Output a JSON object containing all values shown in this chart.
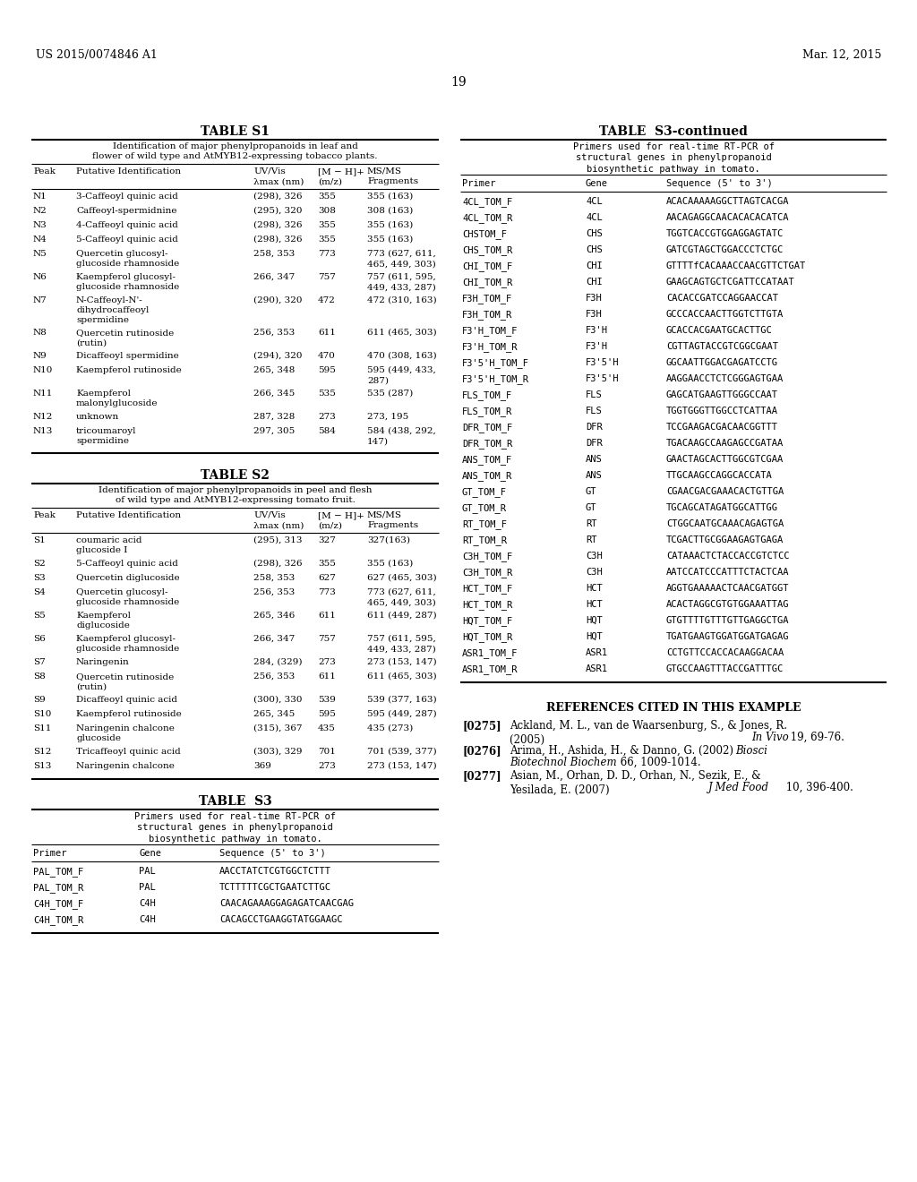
{
  "header_left": "US 2015/0074846 A1",
  "header_right": "Mar. 12, 2015",
  "page_number": "19",
  "bg_color": "#ffffff",
  "table_s1_title": "TABLE S1",
  "table_s1_subtitle": "Identification of major phenylpropanoids in leaf and\nflower of wild type and AtMYB12-expressing tobacco plants.",
  "table_s1_rows": [
    [
      "N1",
      "3-Caffeoyl quinic acid",
      "(298), 326",
      "355",
      "355 (163)"
    ],
    [
      "N2",
      "Caffeoyl-spermidnine",
      "(295), 320",
      "308",
      "308 (163)"
    ],
    [
      "N3",
      "4-Caffeoyl quinic acid",
      "(298), 326",
      "355",
      "355 (163)"
    ],
    [
      "N4",
      "5-Caffeoyl quinic acid",
      "(298), 326",
      "355",
      "355 (163)"
    ],
    [
      "N5",
      "Quercetin glucosyl-\nglucoside rhamnoside",
      "258, 353",
      "773",
      "773 (627, 611,\n465, 449, 303)"
    ],
    [
      "N6",
      "Kaempferol glucosyl-\nglucoside rhamnoside",
      "266, 347",
      "757",
      "757 (611, 595,\n449, 433, 287)"
    ],
    [
      "N7",
      "N-Caffeoyl-N'-\ndihydrocaffeoyl\nspermidine",
      "(290), 320",
      "472",
      "472 (310, 163)"
    ],
    [
      "N8",
      "Quercetin rutinoside\n(rutin)",
      "256, 353",
      "611",
      "611 (465, 303)"
    ],
    [
      "N9",
      "Dicaffeoyl spermidine",
      "(294), 320",
      "470",
      "470 (308, 163)"
    ],
    [
      "N10",
      "Kaempferol rutinoside",
      "265, 348",
      "595",
      "595 (449, 433,\n287)"
    ],
    [
      "N11",
      "Kaempferol\nmalonylglucoside",
      "266, 345",
      "535",
      "535 (287)"
    ],
    [
      "N12",
      "unknown",
      "287, 328",
      "273",
      "273, 195"
    ],
    [
      "N13",
      "tricoumaroyl\nspermidine",
      "297, 305",
      "584",
      "584 (438, 292,\n147)"
    ]
  ],
  "table_s2_title": "TABLE S2",
  "table_s2_subtitle": "Identification of major phenylpropanoids in peel and flesh\nof wild type and AtMYB12-expressing tomato fruit.",
  "table_s2_rows": [
    [
      "S1",
      "coumaric acid\nglucoside I",
      "(295), 313",
      "327",
      "327(163)"
    ],
    [
      "S2",
      "5-Caffeoyl quinic acid",
      "(298), 326",
      "355",
      "355 (163)"
    ],
    [
      "S3",
      "Quercetin diglucoside",
      "258, 353",
      "627",
      "627 (465, 303)"
    ],
    [
      "S4",
      "Quercetin glucosyl-\nglucoside rhamnoside",
      "256, 353",
      "773",
      "773 (627, 611,\n465, 449, 303)"
    ],
    [
      "S5",
      "Kaempferol\ndiglucoside",
      "265, 346",
      "611",
      "611 (449, 287)"
    ],
    [
      "S6",
      "Kaempferol glucosyl-\nglucoside rhamnoside",
      "266, 347",
      "757",
      "757 (611, 595,\n449, 433, 287)"
    ],
    [
      "S7",
      "Naringenin",
      "284, (329)",
      "273",
      "273 (153, 147)"
    ],
    [
      "S8",
      "Quercetin rutinoside\n(rutin)",
      "256, 353",
      "611",
      "611 (465, 303)"
    ],
    [
      "S9",
      "Dicaffeoyl quinic acid",
      "(300), 330",
      "539",
      "539 (377, 163)"
    ],
    [
      "S10",
      "Kaempferol rutinoside",
      "265, 345",
      "595",
      "595 (449, 287)"
    ],
    [
      "S11",
      "Naringenin chalcone\nglucoside",
      "(315), 367",
      "435",
      "435 (273)"
    ],
    [
      "S12",
      "Tricaffeoyl quinic acid",
      "(303), 329",
      "701",
      "701 (539, 377)"
    ],
    [
      "S13",
      "Naringenin chalcone",
      "369",
      "273",
      "273 (153, 147)"
    ]
  ],
  "table_s3_title": "TABLE  S3",
  "table_s3_subtitle": "Primers used for real-time RT-PCR of\nstructural genes in phenylpropanoid\nbiosynthetic pathway in tomato.",
  "table_s3_rows": [
    [
      "PAL_TOM_F",
      "PAL",
      "AACCTATCTCGTGGCTCTTT"
    ],
    [
      "PAL_TOM_R",
      "PAL",
      "TCTTTTTCGCTGAATCTTGC"
    ],
    [
      "C4H_TOM_F",
      "C4H",
      "CAACAGAAAGGAGAGATCAACGAG"
    ],
    [
      "C4H_TOM_R",
      "C4H",
      "CACAGCCTGAAGGTATGGAAGC"
    ]
  ],
  "table_s3cont_title": "TABLE  S3-continued",
  "table_s3cont_subtitle": "Primers used for real-time RT-PCR of\nstructural genes in phenylpropanoid\nbiosynthetic pathway in tomato.",
  "table_s3cont_rows": [
    [
      "4CL_TOM_F",
      "4CL",
      "ACACAAAAAGGCTTAGTCACGA"
    ],
    [
      "4CL_TOM_R",
      "4CL",
      "AACAGAGGCAACACACACATCA"
    ],
    [
      "CHSTOM_F",
      "CHS",
      "TGGTCACCGTGGAGGAGTATC"
    ],
    [
      "CHS_TOM_R",
      "CHS",
      "GATCGTAGCTGGACCCTCTGC"
    ],
    [
      "CHI_TOM_F",
      "CHI",
      "GTTTTfCACAAACCAACGTTCTGAT"
    ],
    [
      "CHI_TOM_R",
      "CHI",
      "GAAGCAGTGCTCGATTCCATAAT"
    ],
    [
      "F3H_TOM_F",
      "F3H",
      "CACACCGATCCAGGAACCAT"
    ],
    [
      "F3H_TOM_R",
      "F3H",
      "GCCCACCAACTTGGTCTTGTA"
    ],
    [
      "F3'H_TOM_F",
      "F3'H",
      "GCACCACGAATGCACTTGC"
    ],
    [
      "F3'H_TOM_R",
      "F3'H",
      "CGTTAGTACCGTCGGCGAAT"
    ],
    [
      "F3'5'H_TOM_F",
      "F3'5'H",
      "GGCAATTGGACGAGATCCTG"
    ],
    [
      "F3'5'H_TOM_R",
      "F3'5'H",
      "AAGGAACCTCTCGGGAGTGAA"
    ],
    [
      "FLS_TOM_F",
      "FLS",
      "GAGCATGAAGTTGGGCCAAT"
    ],
    [
      "FLS_TOM_R",
      "FLS",
      "TGGTGGGTTGGCCTCATTAA"
    ],
    [
      "DFR_TOM_F",
      "DFR",
      "TCCGAAGACGACAACGGTTT"
    ],
    [
      "DFR_TOM_R",
      "DFR",
      "TGACAAGCCAAGAGCCGATAA"
    ],
    [
      "ANS_TOM_F",
      "ANS",
      "GAACTAGCACTTGGCGTCGAA"
    ],
    [
      "ANS_TOM_R",
      "ANS",
      "TTGCAAGCCAGGCACCATA"
    ],
    [
      "GT_TOM_F",
      "GT",
      "CGAACGACGAAACACTGTTGA"
    ],
    [
      "GT_TOM_R",
      "GT",
      "TGCAGCATAGATGGCATTGG"
    ],
    [
      "RT_TOM_F",
      "RT",
      "CTGGCAATGCAAACAGAGTGA"
    ],
    [
      "RT_TOM_R",
      "RT",
      "TCGACTTGCGGAAGAGTGAGA"
    ],
    [
      "C3H_TOM_F",
      "C3H",
      "CATAAACTCTACCACCGTCTCC"
    ],
    [
      "C3H_TOM_R",
      "C3H",
      "AATCCATCCCATTTCTACTCAA"
    ],
    [
      "HCT_TOM_F",
      "HCT",
      "AGGTGAAAAACTCAACGATGGT"
    ],
    [
      "HCT_TOM_R",
      "HCT",
      "ACACTAGGCGTGTGGAAATTAG"
    ],
    [
      "HQT_TOM_F",
      "HQT",
      "GTGTTTTGTTTGTTGAGGCTGA"
    ],
    [
      "HQT_TOM_R",
      "HQT",
      "TGATGAAGTGGATGGATGAGAG"
    ],
    [
      "ASR1_TOM_F",
      "ASR1",
      "CCTGTTCCACCACAAGGACAA"
    ],
    [
      "ASR1_TOM_R",
      "ASR1",
      "GTGCCAAGTTTACCGATTTGC"
    ]
  ],
  "references_title": "REFERENCES CITED IN THIS EXAMPLE",
  "ref_0275_num": "[0275]",
  "ref_0275_text": "Ackland, M. L., van de Waarsenburg, S., & Jones, R.\n(2005) ",
  "ref_0275_italic": "In Vivo",
  "ref_0275_rest": " 19, 69-76.",
  "ref_0276_num": "[0276]",
  "ref_0276_text": "Arima, H., Ashida, H., & Danno, G. (2002) ",
  "ref_0276_italic": "Biosci\nBiotechnol Biochem",
  "ref_0276_rest": " 66, 1009-1014.",
  "ref_0277_num": "[0277]",
  "ref_0277_text": "Asian, M., Orhan, D. D., Orhan, N., Sezik, E., &\nYesilada, E. (2007) ",
  "ref_0277_italic": "J Med Food",
  "ref_0277_rest": " 10, 396-400."
}
